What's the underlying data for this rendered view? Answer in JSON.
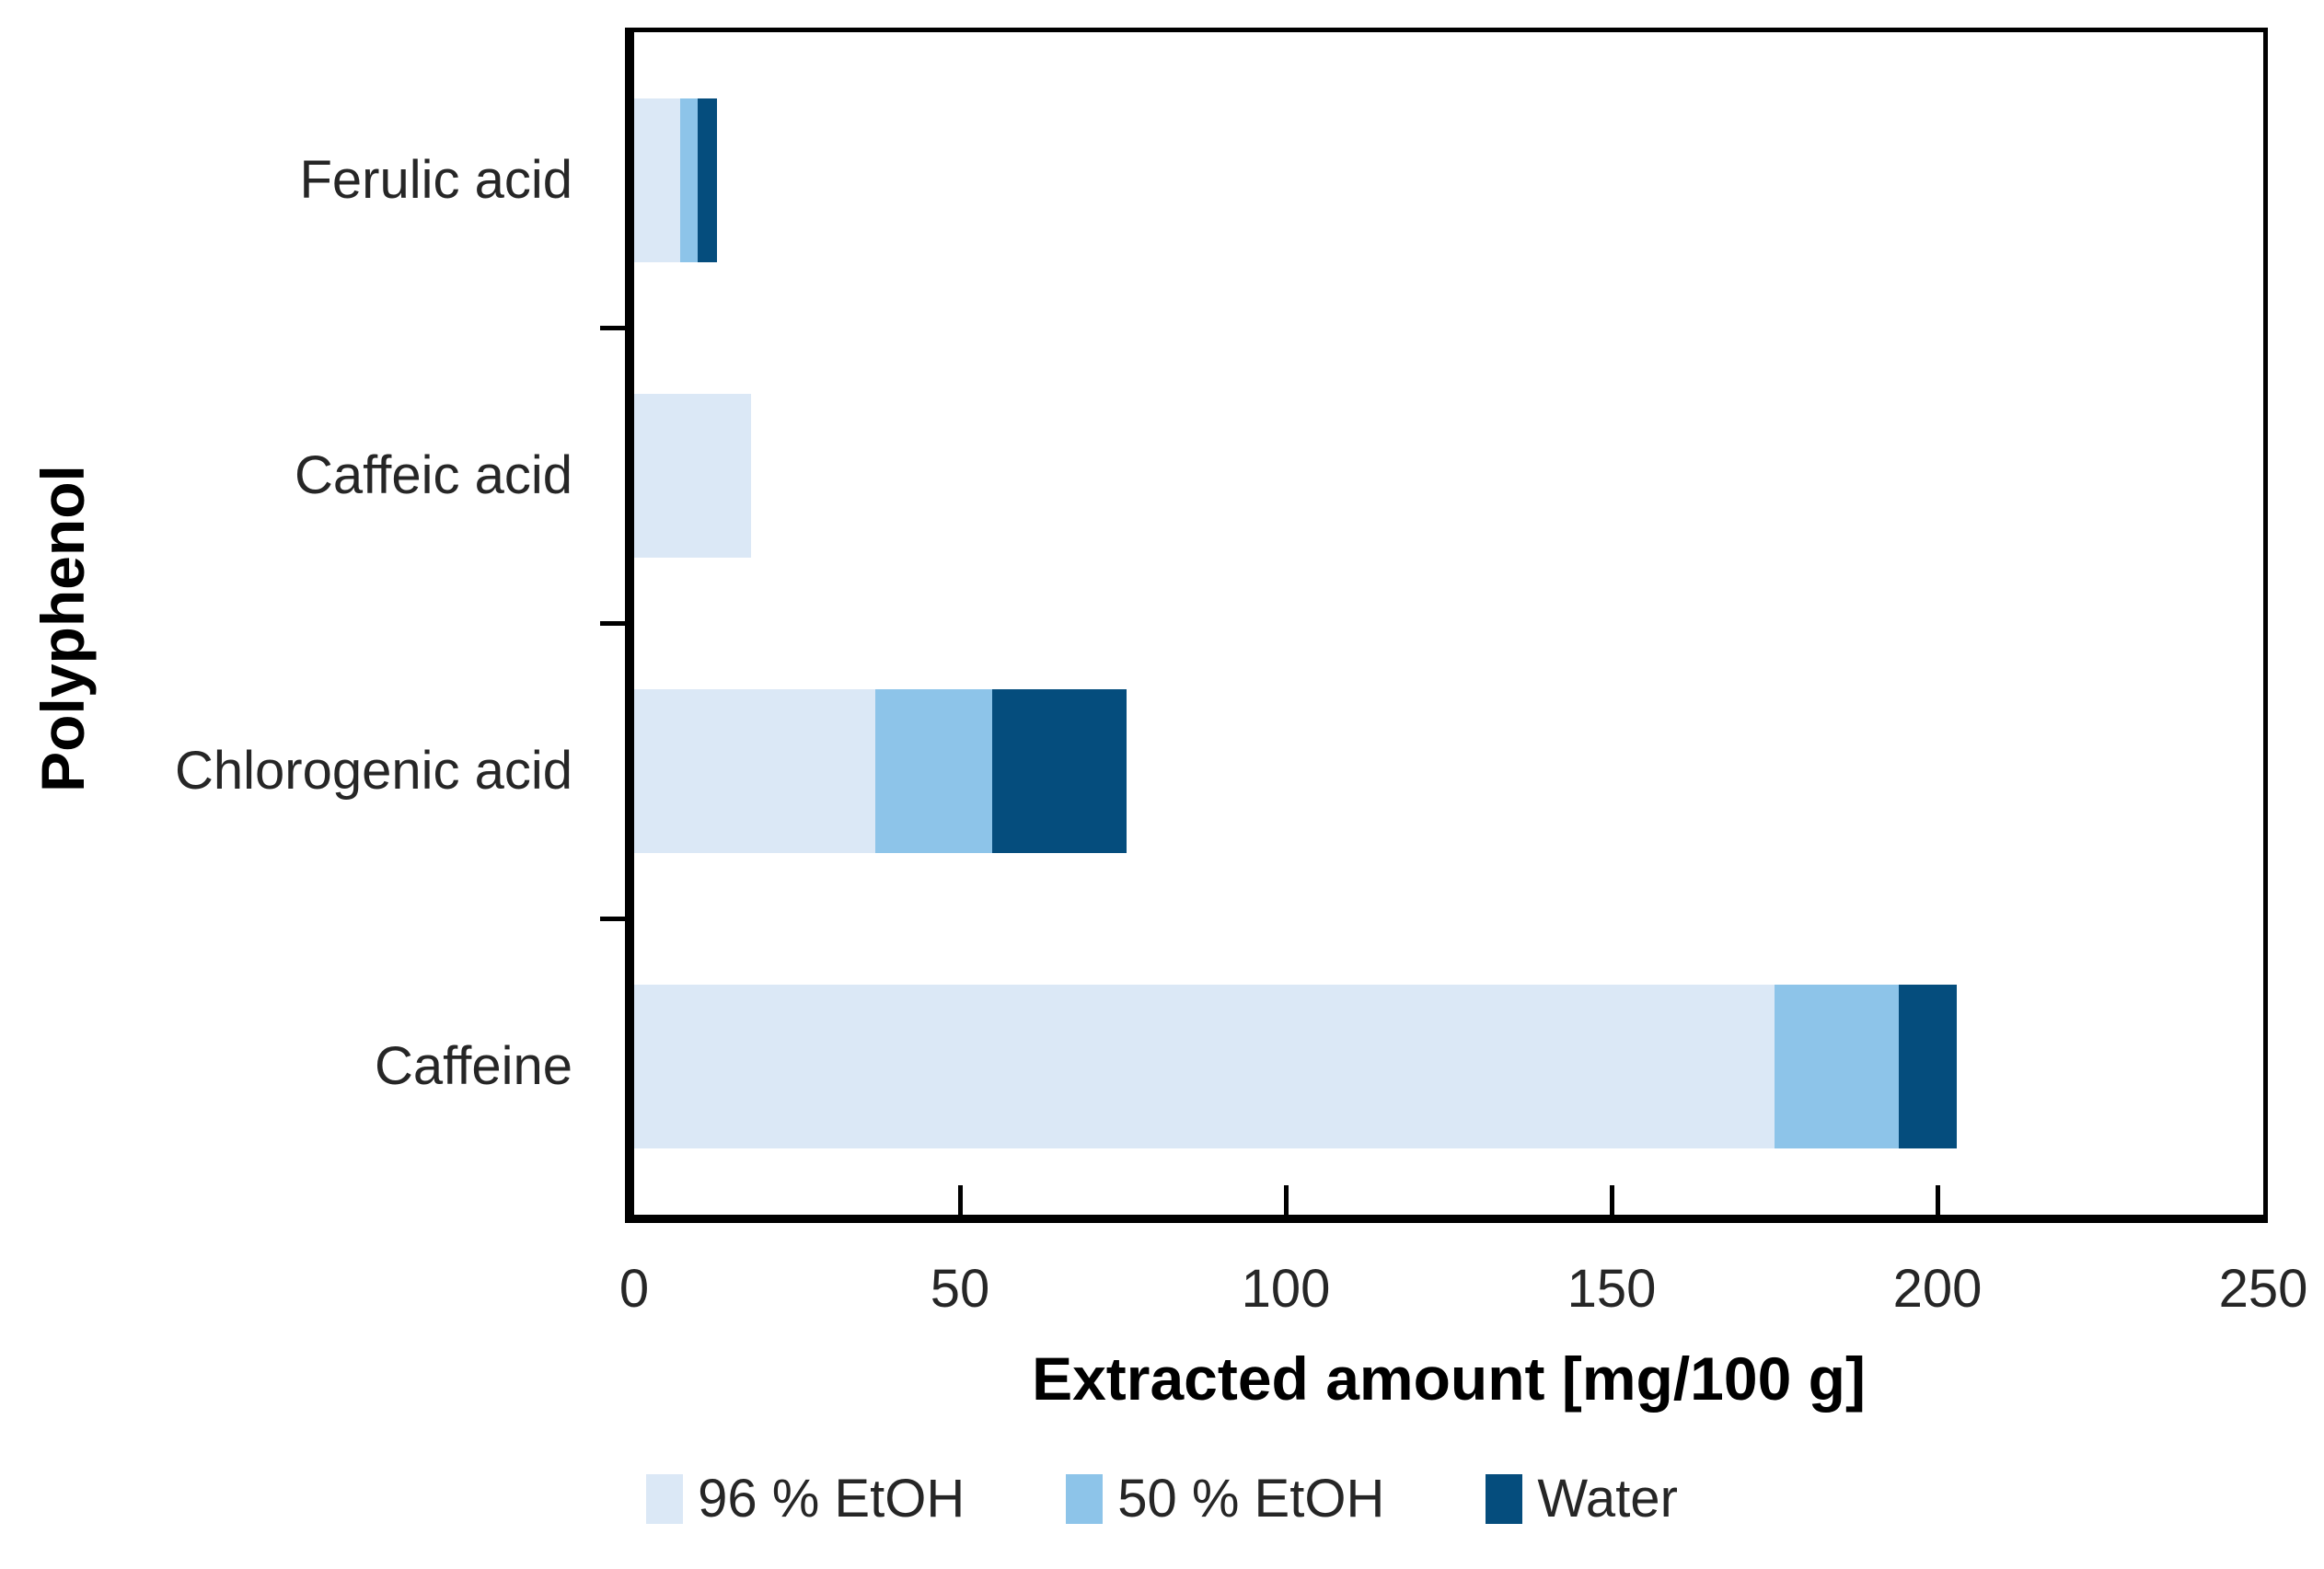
{
  "chart_data": {
    "type": "bar",
    "orientation": "horizontal",
    "stacked": true,
    "xlabel": "Extracted amount [mg/100 g]",
    "ylabel": "Polyphenol",
    "categories": [
      "Ferulic acid",
      "Caffeic acid",
      "Chlorogenic acid",
      "Caffeine"
    ],
    "series": [
      {
        "name": "96 % EtOH",
        "color": "#dbe8f6",
        "values": [
          7,
          18,
          37,
          175
        ]
      },
      {
        "name": "50 % EtOH",
        "color": "#8dc4e9",
        "values": [
          2.7,
          0,
          18,
          19
        ]
      },
      {
        "name": "Water",
        "color": "#054d7d",
        "values": [
          3,
          0,
          20.5,
          9
        ]
      }
    ],
    "xlim": [
      0,
      250
    ],
    "x_ticks": [
      0,
      50,
      100,
      150,
      200,
      250
    ],
    "legend_position": "bottom",
    "grid": false,
    "axis_color": "#000000",
    "label_color": "#262626"
  }
}
